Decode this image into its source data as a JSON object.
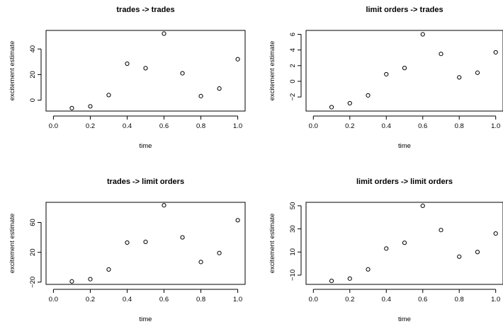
{
  "chart_data": [
    {
      "type": "scatter",
      "title": "trades -> trades",
      "xlabel": "time",
      "ylabel": "excitement estimate",
      "xlim": [
        -0.04,
        1.04
      ],
      "ylim": [
        -8.5,
        54.5
      ],
      "xticks": [
        0.0,
        0.2,
        0.4,
        0.6,
        0.8,
        1.0
      ],
      "xtick_labels": [
        "0.0",
        "0.2",
        "0.4",
        "0.6",
        "0.8",
        "1.0"
      ],
      "yticks": [
        0,
        20,
        40
      ],
      "ytick_labels": [
        "0",
        "20",
        "40"
      ],
      "grid": false,
      "x": [
        0.1,
        0.2,
        0.3,
        0.4,
        0.5,
        0.6,
        0.7,
        0.8,
        0.9,
        1.0
      ],
      "y": [
        -6.2,
        -4.8,
        4.0,
        28.5,
        25.0,
        52.0,
        21.0,
        3.2,
        9.1,
        32.0
      ]
    },
    {
      "type": "scatter",
      "title": "limit orders -> trades",
      "xlabel": "time",
      "ylabel": "excitement estimate",
      "xlim": [
        -0.04,
        1.04
      ],
      "ylim": [
        -3.8,
        6.5
      ],
      "xticks": [
        0.0,
        0.2,
        0.4,
        0.6,
        0.8,
        1.0
      ],
      "xtick_labels": [
        "0.0",
        "0.2",
        "0.4",
        "0.6",
        "0.8",
        "1.0"
      ],
      "yticks": [
        -2,
        0,
        2,
        4,
        6
      ],
      "ytick_labels": [
        "−2",
        "0",
        "2",
        "4",
        "6"
      ],
      "grid": false,
      "x": [
        0.1,
        0.2,
        0.3,
        0.4,
        0.5,
        0.6,
        0.7,
        0.8,
        0.9,
        1.0
      ],
      "y": [
        -3.3,
        -2.8,
        -1.8,
        0.9,
        1.7,
        6.0,
        3.5,
        0.5,
        1.1,
        3.7
      ]
    },
    {
      "type": "scatter",
      "title": "trades -> limit orders",
      "xlabel": "time",
      "ylabel": "excitement estimate",
      "xlim": [
        -0.04,
        1.04
      ],
      "ylim": [
        -23,
        87
      ],
      "xticks": [
        0.0,
        0.2,
        0.4,
        0.6,
        0.8,
        1.0
      ],
      "xtick_labels": [
        "0.0",
        "0.2",
        "0.4",
        "0.6",
        "0.8",
        "1.0"
      ],
      "yticks": [
        -20,
        20,
        60
      ],
      "ytick_labels": [
        "−20",
        "20",
        "60"
      ],
      "grid": false,
      "x": [
        0.1,
        0.2,
        0.3,
        0.4,
        0.5,
        0.6,
        0.7,
        0.8,
        0.9,
        1.0
      ],
      "y": [
        -19.0,
        -16.0,
        -3.0,
        33.0,
        34.0,
        83.0,
        40.0,
        7.0,
        19.0,
        63.0
      ]
    },
    {
      "type": "scatter",
      "title": "limit orders -> limit orders",
      "xlabel": "time",
      "ylabel": "excitement estimate",
      "xlim": [
        -0.04,
        1.04
      ],
      "ylim": [
        -18,
        53
      ],
      "xticks": [
        0.0,
        0.2,
        0.4,
        0.6,
        0.8,
        1.0
      ],
      "xtick_labels": [
        "0.0",
        "0.2",
        "0.4",
        "0.6",
        "0.8",
        "1.0"
      ],
      "yticks": [
        -10,
        10,
        30,
        50
      ],
      "ytick_labels": [
        "−10",
        "10",
        "30",
        "50"
      ],
      "grid": false,
      "x": [
        0.1,
        0.2,
        0.3,
        0.4,
        0.5,
        0.6,
        0.7,
        0.8,
        0.9,
        1.0
      ],
      "y": [
        -15.0,
        -13.0,
        -5.0,
        13.0,
        18.0,
        50.0,
        29.0,
        6.0,
        10.0,
        26.0
      ]
    }
  ]
}
